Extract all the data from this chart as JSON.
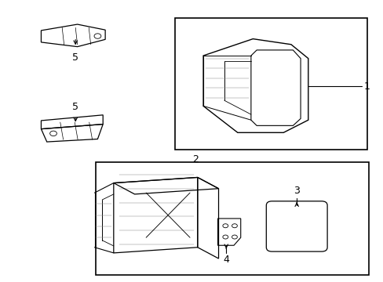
{
  "background_color": "#ffffff",
  "line_color": "#000000",
  "light_line_color": "#888888",
  "fig_width": 4.89,
  "fig_height": 3.6,
  "dpi": 100
}
